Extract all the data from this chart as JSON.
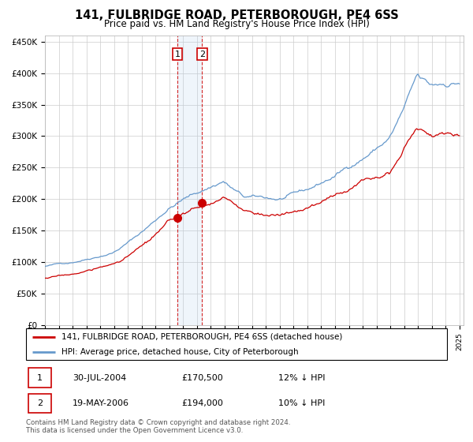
{
  "title": "141, FULBRIDGE ROAD, PETERBOROUGH, PE4 6SS",
  "subtitle": "Price paid vs. HM Land Registry's House Price Index (HPI)",
  "legend_line1": "141, FULBRIDGE ROAD, PETERBOROUGH, PE4 6SS (detached house)",
  "legend_line2": "HPI: Average price, detached house, City of Peterborough",
  "table_row1": [
    "1",
    "30-JUL-2004",
    "£170,500",
    "12% ↓ HPI"
  ],
  "table_row2": [
    "2",
    "19-MAY-2006",
    "£194,000",
    "10% ↓ HPI"
  ],
  "footer": "Contains HM Land Registry data © Crown copyright and database right 2024.\nThis data is licensed under the Open Government Licence v3.0.",
  "red_color": "#cc0000",
  "blue_color": "#6699cc",
  "marker1_x": 2004.58,
  "marker1_y": 170500,
  "marker2_x": 2006.38,
  "marker2_y": 194000,
  "vshade_x1": 2004.58,
  "vshade_x2": 2006.38,
  "ylim": [
    0,
    460000
  ],
  "xlim_start": 1995,
  "xlim_end": 2025.3,
  "background_color": "#ffffff",
  "grid_color": "#cccccc",
  "title_fontsize": 10.5,
  "subtitle_fontsize": 8.5
}
